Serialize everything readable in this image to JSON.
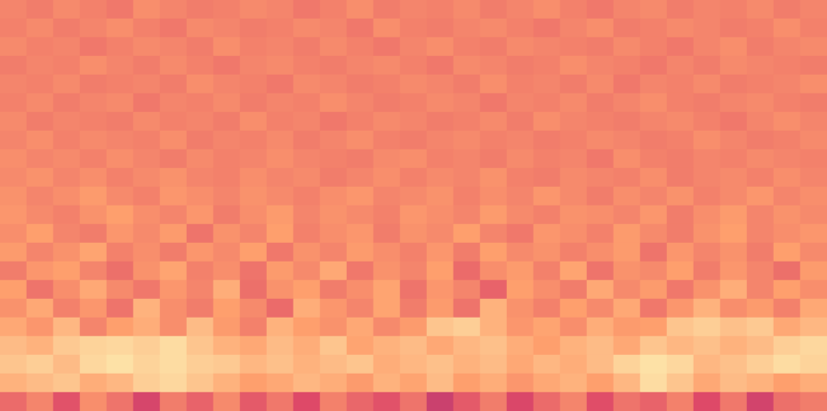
{
  "chart_data": {
    "type": "heatmap",
    "tick_labels": false,
    "zlim": [
      0,
      100
    ],
    "cells": [
      [
        74,
        72,
        75,
        73,
        71,
        76,
        74,
        72,
        73,
        75,
        74,
        71,
        73,
        76,
        72,
        74,
        73,
        75,
        72,
        74,
        76,
        73,
        71,
        74,
        75,
        72,
        74,
        73,
        75,
        72,
        74
      ],
      [
        73,
        75,
        72,
        74,
        76,
        73,
        71,
        75,
        74,
        72,
        73,
        75,
        74,
        71,
        76,
        73,
        72,
        74,
        75,
        73,
        71,
        74,
        76,
        72,
        73,
        75,
        74,
        72,
        73,
        76,
        73
      ],
      [
        75,
        73,
        74,
        71,
        73,
        75,
        74,
        72,
        76,
        73,
        74,
        72,
        75,
        73,
        71,
        74,
        76,
        73,
        72,
        75,
        74,
        73,
        72,
        75,
        73,
        71,
        74,
        76,
        72,
        74,
        75
      ],
      [
        72,
        74,
        73,
        76,
        74,
        72,
        75,
        73,
        71,
        74,
        75,
        73,
        72,
        74,
        75,
        73,
        71,
        75,
        74,
        72,
        73,
        76,
        74,
        73,
        71,
        74,
        72,
        75,
        74,
        73,
        72
      ],
      [
        74,
        73,
        75,
        72,
        73,
        74,
        72,
        76,
        74,
        73,
        71,
        75,
        74,
        72,
        73,
        75,
        74,
        72,
        76,
        73,
        74,
        72,
        75,
        71,
        74,
        73,
        75,
        72,
        73,
        74,
        76
      ],
      [
        73,
        75,
        72,
        74,
        75,
        71,
        74,
        73,
        75,
        72,
        74,
        73,
        76,
        74,
        72,
        73,
        75,
        74,
        71,
        74,
        73,
        75,
        72,
        74,
        76,
        73,
        72,
        74,
        75,
        73,
        72
      ],
      [
        75,
        72,
        74,
        73,
        72,
        75,
        73,
        74,
        72,
        76,
        73,
        74,
        71,
        73,
        75,
        74,
        72,
        73,
        75,
        72,
        76,
        74,
        73,
        72,
        74,
        75,
        73,
        71,
        74,
        76,
        74
      ],
      [
        74,
        76,
        73,
        75,
        74,
        73,
        76,
        72,
        74,
        73,
        75,
        72,
        74,
        76,
        73,
        72,
        74,
        75,
        73,
        74,
        72,
        73,
        75,
        74,
        72,
        73,
        76,
        74,
        72,
        73,
        75
      ],
      [
        76,
        74,
        75,
        73,
        76,
        74,
        72,
        75,
        73,
        74,
        76,
        74,
        73,
        72,
        75,
        76,
        73,
        74,
        72,
        75,
        73,
        74,
        71,
        76,
        73,
        72,
        74,
        73,
        75,
        74,
        73
      ],
      [
        75,
        77,
        74,
        76,
        73,
        75,
        77,
        74,
        73,
        76,
        74,
        75,
        72,
        74,
        76,
        73,
        75,
        74,
        77,
        73,
        72,
        75,
        74,
        73,
        76,
        72,
        74,
        75,
        73,
        76,
        74
      ],
      [
        77,
        74,
        76,
        79,
        75,
        73,
        78,
        76,
        74,
        77,
        75,
        73,
        76,
        78,
        74,
        75,
        77,
        73,
        76,
        74,
        78,
        75,
        72,
        76,
        74,
        77,
        73,
        75,
        78,
        74,
        76
      ],
      [
        78,
        75,
        73,
        77,
        80,
        76,
        74,
        78,
        72,
        76,
        79,
        74,
        77,
        75,
        73,
        78,
        76,
        74,
        79,
        75,
        73,
        77,
        76,
        74,
        78,
        72,
        76,
        79,
        74,
        77,
        75
      ],
      [
        76,
        80,
        74,
        72,
        78,
        75,
        79,
        70,
        77,
        74,
        80,
        73,
        76,
        78,
        72,
        77,
        75,
        80,
        74,
        71,
        78,
        76,
        73,
        79,
        75,
        72,
        77,
        80,
        74,
        76,
        78
      ],
      [
        79,
        74,
        77,
        81,
        73,
        76,
        72,
        78,
        75,
        80,
        71,
        77,
        74,
        79,
        76,
        73,
        78,
        72,
        80,
        75,
        77,
        73,
        76,
        79,
        70,
        78,
        74,
        77,
        72,
        80,
        75
      ],
      [
        72,
        78,
        80,
        74,
        69,
        77,
        81,
        73,
        76,
        70,
        79,
        75,
        82,
        71,
        77,
        74,
        80,
        68,
        76,
        79,
        73,
        81,
        70,
        77,
        75,
        80,
        72,
        78,
        74,
        69,
        79
      ],
      [
        80,
        70,
        76,
        82,
        75,
        71,
        78,
        74,
        83,
        69,
        77,
        80,
        72,
        76,
        81,
        70,
        78,
        74,
        66,
        80,
        76,
        72,
        82,
        75,
        79,
        71,
        77,
        83,
        74,
        80,
        76
      ],
      [
        77,
        82,
        73,
        78,
        70,
        84,
        76,
        72,
        80,
        75,
        68,
        83,
        78,
        74,
        81,
        72,
        79,
        70,
        84,
        77,
        73,
        80,
        75,
        82,
        71,
        78,
        84,
        76,
        79,
        73,
        82
      ],
      [
        82,
        78,
        85,
        74,
        80,
        83,
        76,
        86,
        79,
        73,
        84,
        80,
        77,
        82,
        75,
        79,
        88,
        90,
        84,
        78,
        81,
        76,
        83,
        79,
        80,
        88,
        90,
        87,
        89,
        82,
        85
      ],
      [
        86,
        84,
        89,
        91,
        92,
        90,
        93,
        88,
        84,
        82,
        86,
        83,
        88,
        81,
        84,
        86,
        82,
        85,
        87,
        83,
        80,
        84,
        86,
        82,
        88,
        85,
        87,
        84,
        86,
        90,
        92
      ],
      [
        88,
        90,
        86,
        92,
        94,
        91,
        93,
        90,
        89,
        85,
        87,
        84,
        86,
        88,
        83,
        85,
        87,
        84,
        86,
        82,
        85,
        83,
        86,
        91,
        94,
        92,
        85,
        87,
        90,
        93,
        91
      ],
      [
        84,
        86,
        88,
        83,
        85,
        90,
        92,
        88,
        84,
        80,
        82,
        85,
        83,
        79,
        84,
        81,
        86,
        80,
        83,
        78,
        82,
        84,
        80,
        85,
        93,
        88,
        82,
        86,
        84,
        80,
        83
      ],
      [
        68,
        74,
        62,
        76,
        70,
        58,
        72,
        66,
        75,
        64,
        71,
        60,
        73,
        67,
        62,
        70,
        55,
        64,
        72,
        59,
        68,
        74,
        61,
        70,
        66,
        73,
        60,
        71,
        57,
        69,
        72
      ]
    ]
  }
}
